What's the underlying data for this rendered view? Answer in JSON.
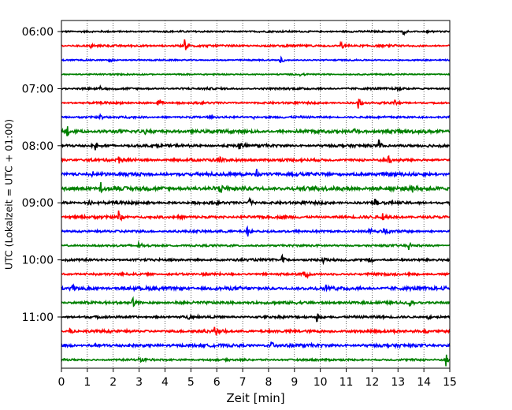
{
  "chart_data": {
    "type": "line",
    "title": "",
    "xlabel": "Zeit  [min]",
    "ylabel": "UTC (Lokalzeit = UTC + 01:00)",
    "xlim": [
      0,
      15
    ],
    "x_ticks": [
      "0",
      "1",
      "2",
      "3",
      "4",
      "5",
      "6",
      "7",
      "8",
      "9",
      "10",
      "11",
      "12",
      "13",
      "14",
      "15"
    ],
    "y_ticks": [
      "06:00",
      "07:00",
      "08:00",
      "09:00",
      "10:00",
      "11:00"
    ],
    "grid": "vertical-dotted",
    "colors": {
      "black": "#000000",
      "red": "#ff0000",
      "blue": "#0000ff",
      "green": "#008000"
    },
    "traces": [
      {
        "start": "06:00",
        "color": "black",
        "amplitude": 0.05,
        "spikes": [
          [
            13.2,
            0.2
          ],
          [
            14.1,
            0.15
          ]
        ]
      },
      {
        "start": "06:15",
        "color": "red",
        "amplitude": 0.06,
        "spikes": [
          [
            1.1,
            0.2
          ],
          [
            4.75,
            0.45
          ],
          [
            10.75,
            0.5
          ],
          [
            12.9,
            0.15
          ]
        ]
      },
      {
        "start": "06:30",
        "color": "blue",
        "amplitude": 0.04,
        "spikes": [
          [
            1.85,
            0.3
          ],
          [
            8.45,
            0.4
          ]
        ]
      },
      {
        "start": "06:45",
        "color": "green",
        "amplitude": 0.04,
        "spikes": [
          [
            9.2,
            0.15
          ]
        ]
      },
      {
        "start": "07:00",
        "color": "black",
        "amplitude": 0.06,
        "spikes": [
          [
            13.0,
            0.2
          ],
          [
            1.5,
            0.15
          ]
        ]
      },
      {
        "start": "07:15",
        "color": "red",
        "amplitude": 0.06,
        "spikes": [
          [
            3.7,
            0.55
          ],
          [
            11.45,
            0.5
          ],
          [
            12.85,
            0.2
          ]
        ]
      },
      {
        "start": "07:30",
        "color": "blue",
        "amplitude": 0.06,
        "spikes": [
          [
            1.5,
            0.15
          ],
          [
            7.4,
            0.15
          ]
        ]
      },
      {
        "start": "07:45",
        "color": "green",
        "amplitude": 0.1,
        "spikes": [
          [
            0.2,
            0.55
          ],
          [
            11.3,
            0.45
          ],
          [
            3.2,
            0.2
          ]
        ]
      },
      {
        "start": "08:00",
        "color": "black",
        "amplitude": 0.08,
        "spikes": [
          [
            1.3,
            0.3
          ],
          [
            6.85,
            0.55
          ],
          [
            12.25,
            0.45
          ]
        ]
      },
      {
        "start": "08:15",
        "color": "red",
        "amplitude": 0.08,
        "spikes": [
          [
            2.2,
            0.45
          ],
          [
            6.1,
            0.25
          ],
          [
            12.6,
            0.5
          ]
        ]
      },
      {
        "start": "08:30",
        "color": "blue",
        "amplitude": 0.1,
        "spikes": [
          [
            7.5,
            0.55
          ],
          [
            1.2,
            0.2
          ]
        ]
      },
      {
        "start": "08:45",
        "color": "green",
        "amplitude": 0.12,
        "spikes": [
          [
            1.5,
            0.45
          ],
          [
            6.1,
            0.45
          ],
          [
            13.5,
            0.45
          ]
        ]
      },
      {
        "start": "09:00",
        "color": "black",
        "amplitude": 0.08,
        "spikes": [
          [
            1.05,
            0.3
          ],
          [
            3.3,
            0.3
          ],
          [
            7.25,
            0.55
          ],
          [
            12.1,
            0.45
          ]
        ]
      },
      {
        "start": "09:15",
        "color": "red",
        "amplitude": 0.08,
        "spikes": [
          [
            2.2,
            0.5
          ],
          [
            12.4,
            0.4
          ],
          [
            6.0,
            0.15
          ]
        ]
      },
      {
        "start": "09:30",
        "color": "blue",
        "amplitude": 0.07,
        "spikes": [
          [
            7.15,
            0.5
          ],
          [
            11.9,
            0.3
          ],
          [
            12.45,
            0.4
          ]
        ]
      },
      {
        "start": "09:45",
        "color": "green",
        "amplitude": 0.06,
        "spikes": [
          [
            2.95,
            0.4
          ],
          [
            13.4,
            0.3
          ]
        ]
      },
      {
        "start": "10:00",
        "color": "black",
        "amplitude": 0.07,
        "spikes": [
          [
            8.5,
            0.45
          ],
          [
            10.1,
            0.25
          ],
          [
            11.9,
            0.3
          ]
        ]
      },
      {
        "start": "10:15",
        "color": "red",
        "amplitude": 0.07,
        "spikes": [
          [
            9.35,
            0.5
          ],
          [
            0.35,
            0.15
          ]
        ]
      },
      {
        "start": "10:30",
        "color": "blue",
        "amplitude": 0.1,
        "spikes": [
          [
            0.4,
            0.35
          ],
          [
            10.15,
            0.4
          ],
          [
            14.85,
            0.35
          ]
        ]
      },
      {
        "start": "10:45",
        "color": "green",
        "amplitude": 0.08,
        "spikes": [
          [
            2.75,
            0.4
          ],
          [
            13.45,
            0.4
          ]
        ]
      },
      {
        "start": "11:00",
        "color": "black",
        "amplitude": 0.07,
        "spikes": [
          [
            9.85,
            0.45
          ],
          [
            4.9,
            0.2
          ],
          [
            14.15,
            0.2
          ]
        ]
      },
      {
        "start": "11:15",
        "color": "red",
        "amplitude": 0.08,
        "spikes": [
          [
            5.9,
            0.45
          ],
          [
            0.3,
            0.25
          ],
          [
            14.0,
            0.25
          ]
        ]
      },
      {
        "start": "11:30",
        "color": "blue",
        "amplitude": 0.09,
        "spikes": [
          [
            0.15,
            0.3
          ],
          [
            8.1,
            0.35
          ]
        ]
      },
      {
        "start": "11:45",
        "color": "green",
        "amplitude": 0.06,
        "spikes": [
          [
            3.0,
            0.35
          ],
          [
            14.85,
            0.55
          ]
        ]
      }
    ]
  }
}
